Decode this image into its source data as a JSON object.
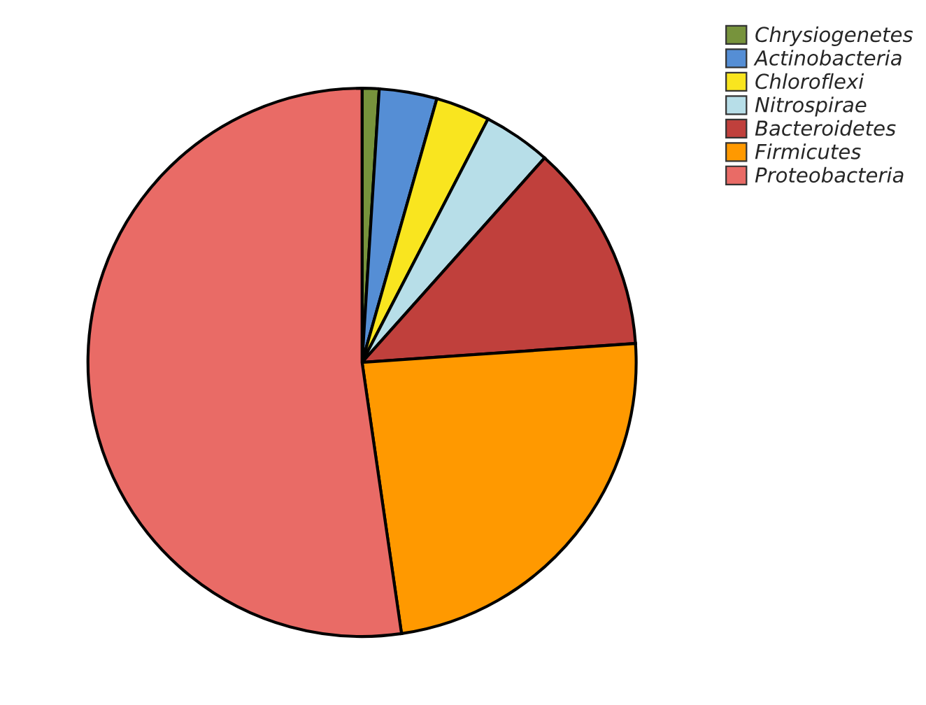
{
  "chart_data": {
    "type": "pie",
    "categories": [
      "Chrysiogenetes",
      "Actinobacteria",
      "Chloroflexi",
      "Nitrospirae",
      "Bacteroidetes",
      "Firmicutes",
      "Proteobacteria"
    ],
    "values": [
      1.0,
      3.4,
      3.2,
      4.0,
      12.3,
      23.8,
      52.3
    ],
    "colors": [
      "#77933c",
      "#558ed5",
      "#f9e51f",
      "#b7dee8",
      "#c0403c",
      "#ff9900",
      "#e96b66"
    ],
    "legend": "top right"
  }
}
